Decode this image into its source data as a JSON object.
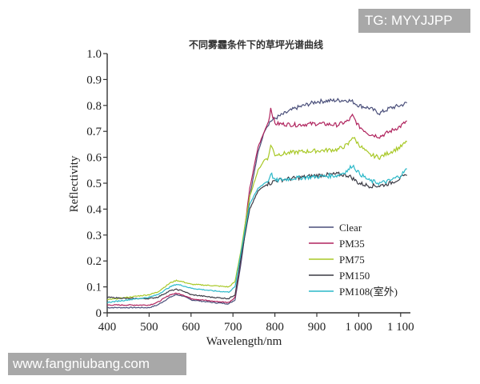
{
  "watermarks": {
    "top_right": "TG: MYYJJPP",
    "bottom_left": "www.fangniubang.com"
  },
  "chart_data": {
    "type": "line",
    "title": "不同雾霾条件下的草坪光谱曲线",
    "xlabel": "Wavelength/nm",
    "ylabel": "Reflectivity",
    "xlim": [
      400,
      1120
    ],
    "ylim": [
      0,
      1.0
    ],
    "xticks": [
      400,
      500,
      600,
      700,
      800,
      900,
      1000,
      1100
    ],
    "xtick_labels": [
      "400",
      "500",
      "600",
      "700",
      "800",
      "900",
      "1 000",
      "1 100"
    ],
    "yticks": [
      0,
      0.1,
      0.2,
      0.3,
      0.4,
      0.5,
      0.6,
      0.7,
      0.8,
      0.9,
      1.0
    ],
    "ytick_labels": [
      "0",
      "0.1",
      "0.2",
      "0.3",
      "0.4",
      "0.5",
      "0.6",
      "0.7",
      "0.8",
      "0.9",
      "1.0"
    ],
    "grid": false,
    "legend_position": "lower right inside",
    "x": [
      400,
      450,
      500,
      520,
      550,
      565,
      580,
      600,
      650,
      690,
      705,
      720,
      740,
      760,
      775,
      785,
      790,
      800,
      850,
      900,
      950,
      975,
      985,
      1000,
      1025,
      1050,
      1075,
      1100,
      1115
    ],
    "series": [
      {
        "name": "Clear",
        "color": "#4a4f7a",
        "values": [
          0.02,
          0.02,
          0.02,
          0.03,
          0.06,
          0.07,
          0.065,
          0.05,
          0.04,
          0.035,
          0.05,
          0.2,
          0.45,
          0.62,
          0.7,
          0.73,
          0.74,
          0.75,
          0.79,
          0.815,
          0.82,
          0.82,
          0.815,
          0.8,
          0.79,
          0.77,
          0.79,
          0.8,
          0.81
        ]
      },
      {
        "name": "PM35",
        "color": "#b0245e",
        "values": [
          0.03,
          0.03,
          0.03,
          0.04,
          0.07,
          0.075,
          0.07,
          0.055,
          0.045,
          0.04,
          0.06,
          0.22,
          0.48,
          0.64,
          0.7,
          0.74,
          0.79,
          0.73,
          0.725,
          0.73,
          0.725,
          0.74,
          0.76,
          0.72,
          0.69,
          0.68,
          0.7,
          0.72,
          0.74
        ]
      },
      {
        "name": "PM75",
        "color": "#a8c826",
        "values": [
          0.05,
          0.06,
          0.07,
          0.08,
          0.115,
          0.125,
          0.12,
          0.11,
          0.105,
          0.1,
          0.12,
          0.25,
          0.45,
          0.55,
          0.59,
          0.6,
          0.65,
          0.61,
          0.62,
          0.625,
          0.63,
          0.65,
          0.68,
          0.65,
          0.61,
          0.6,
          0.62,
          0.64,
          0.66
        ]
      },
      {
        "name": "PM150",
        "color": "#3a3a44",
        "values": [
          0.06,
          0.055,
          0.055,
          0.06,
          0.085,
          0.09,
          0.085,
          0.07,
          0.06,
          0.055,
          0.07,
          0.22,
          0.4,
          0.47,
          0.49,
          0.5,
          0.5,
          0.51,
          0.52,
          0.53,
          0.535,
          0.53,
          0.52,
          0.5,
          0.49,
          0.49,
          0.5,
          0.52,
          0.53
        ]
      },
      {
        "name": "PM108(室外)",
        "color": "#2ab8c8",
        "values": [
          0.04,
          0.05,
          0.06,
          0.07,
          0.1,
          0.11,
          0.105,
          0.095,
          0.085,
          0.08,
          0.1,
          0.24,
          0.42,
          0.48,
          0.5,
          0.51,
          0.54,
          0.51,
          0.52,
          0.525,
          0.53,
          0.55,
          0.57,
          0.54,
          0.51,
          0.5,
          0.51,
          0.53,
          0.555
        ]
      }
    ]
  }
}
